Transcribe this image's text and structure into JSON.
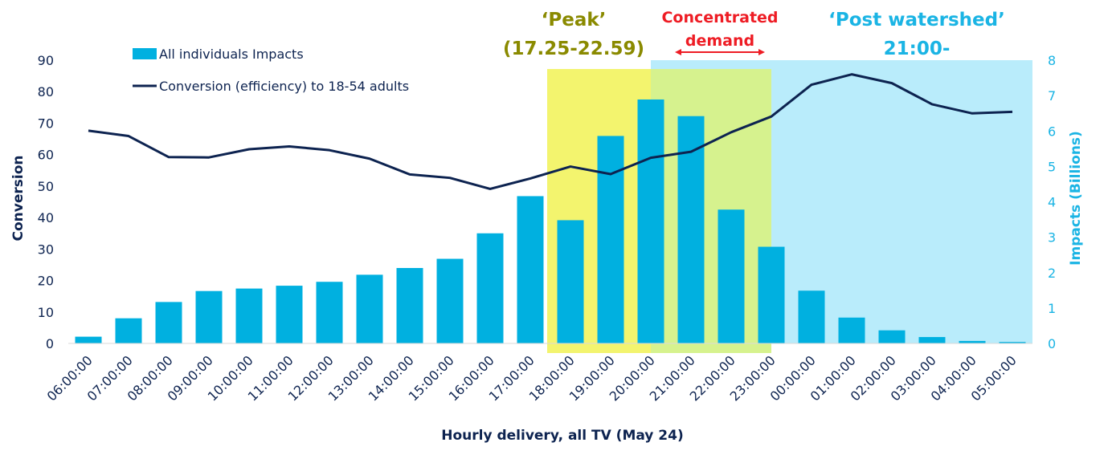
{
  "chart_data": {
    "type": "bar+line",
    "xlabel": "Hourly delivery, all TV (May 24)",
    "categories": [
      "06:00:00",
      "07:00:00",
      "08:00:00",
      "09:00:00",
      "10:00:00",
      "11:00:00",
      "12:00:00",
      "13:00:00",
      "14:00:00",
      "15:00:00",
      "16:00:00",
      "17:00:00",
      "18:00:00",
      "19:00:00",
      "20:00:00",
      "21:00:00",
      "22:00:00",
      "23:00:00",
      "00:00:00",
      "01:00:00",
      "02:00:00",
      "03:00:00",
      "04:00:00",
      "05:00:00"
    ],
    "left_axis": {
      "label": "Conversion",
      "ylim": [
        0,
        90
      ],
      "ticks": [
        "0",
        "10",
        "20",
        "30",
        "40",
        "50",
        "60",
        "70",
        "80",
        "90"
      ]
    },
    "right_axis": {
      "label": "Impacts (Billions)",
      "ylim": [
        0,
        8
      ],
      "ticks": [
        "0",
        "1",
        "2",
        "3",
        "4",
        "5",
        "6",
        "7",
        "8"
      ]
    },
    "series": [
      {
        "name": "All individuals Impacts",
        "type": "bar",
        "axis": "right",
        "color": "#00b0e0",
        "values": [
          0.19,
          0.71,
          1.17,
          1.48,
          1.55,
          1.63,
          1.74,
          1.94,
          2.13,
          2.39,
          3.11,
          4.16,
          3.48,
          5.86,
          6.89,
          6.42,
          3.78,
          2.73,
          1.49,
          0.73,
          0.37,
          0.18,
          0.07,
          0.04
        ]
      },
      {
        "name": "Conversion (efficiency) to 18-54 adults",
        "type": "line",
        "axis": "left",
        "color": "#0d2350",
        "values": [
          67.6,
          65.9,
          59.2,
          59.1,
          61.7,
          62.6,
          61.4,
          58.7,
          53.7,
          52.6,
          49.1,
          52.4,
          56.2,
          53.8,
          59.0,
          60.9,
          67.1,
          72.1,
          82.2,
          85.5,
          82.7,
          76.0,
          73.1,
          73.6
        ]
      }
    ],
    "annotations": [
      {
        "text_lines": [
          "‘Peak’",
          "(17.25-22.59)"
        ],
        "color": "#8a8a00",
        "band_color": "#f3f46e",
        "band_from_hour": 17.42,
        "band_to_hour": 23.0
      },
      {
        "text_lines": [
          "Concentrated",
          "demand"
        ],
        "color": "#ee1c24",
        "band_color": "#d6f28e",
        "band_from_hour": 20.0,
        "band_to_hour": 23.0
      },
      {
        "text_lines": [
          "‘Post watershed’",
          "21:00-"
        ],
        "color": "#1ab4e4",
        "band_color": "#b9ecfb",
        "band_from_hour": 20.0,
        "band_to_hour": 30.0
      }
    ],
    "legend_position": "top-left",
    "grid": false
  }
}
